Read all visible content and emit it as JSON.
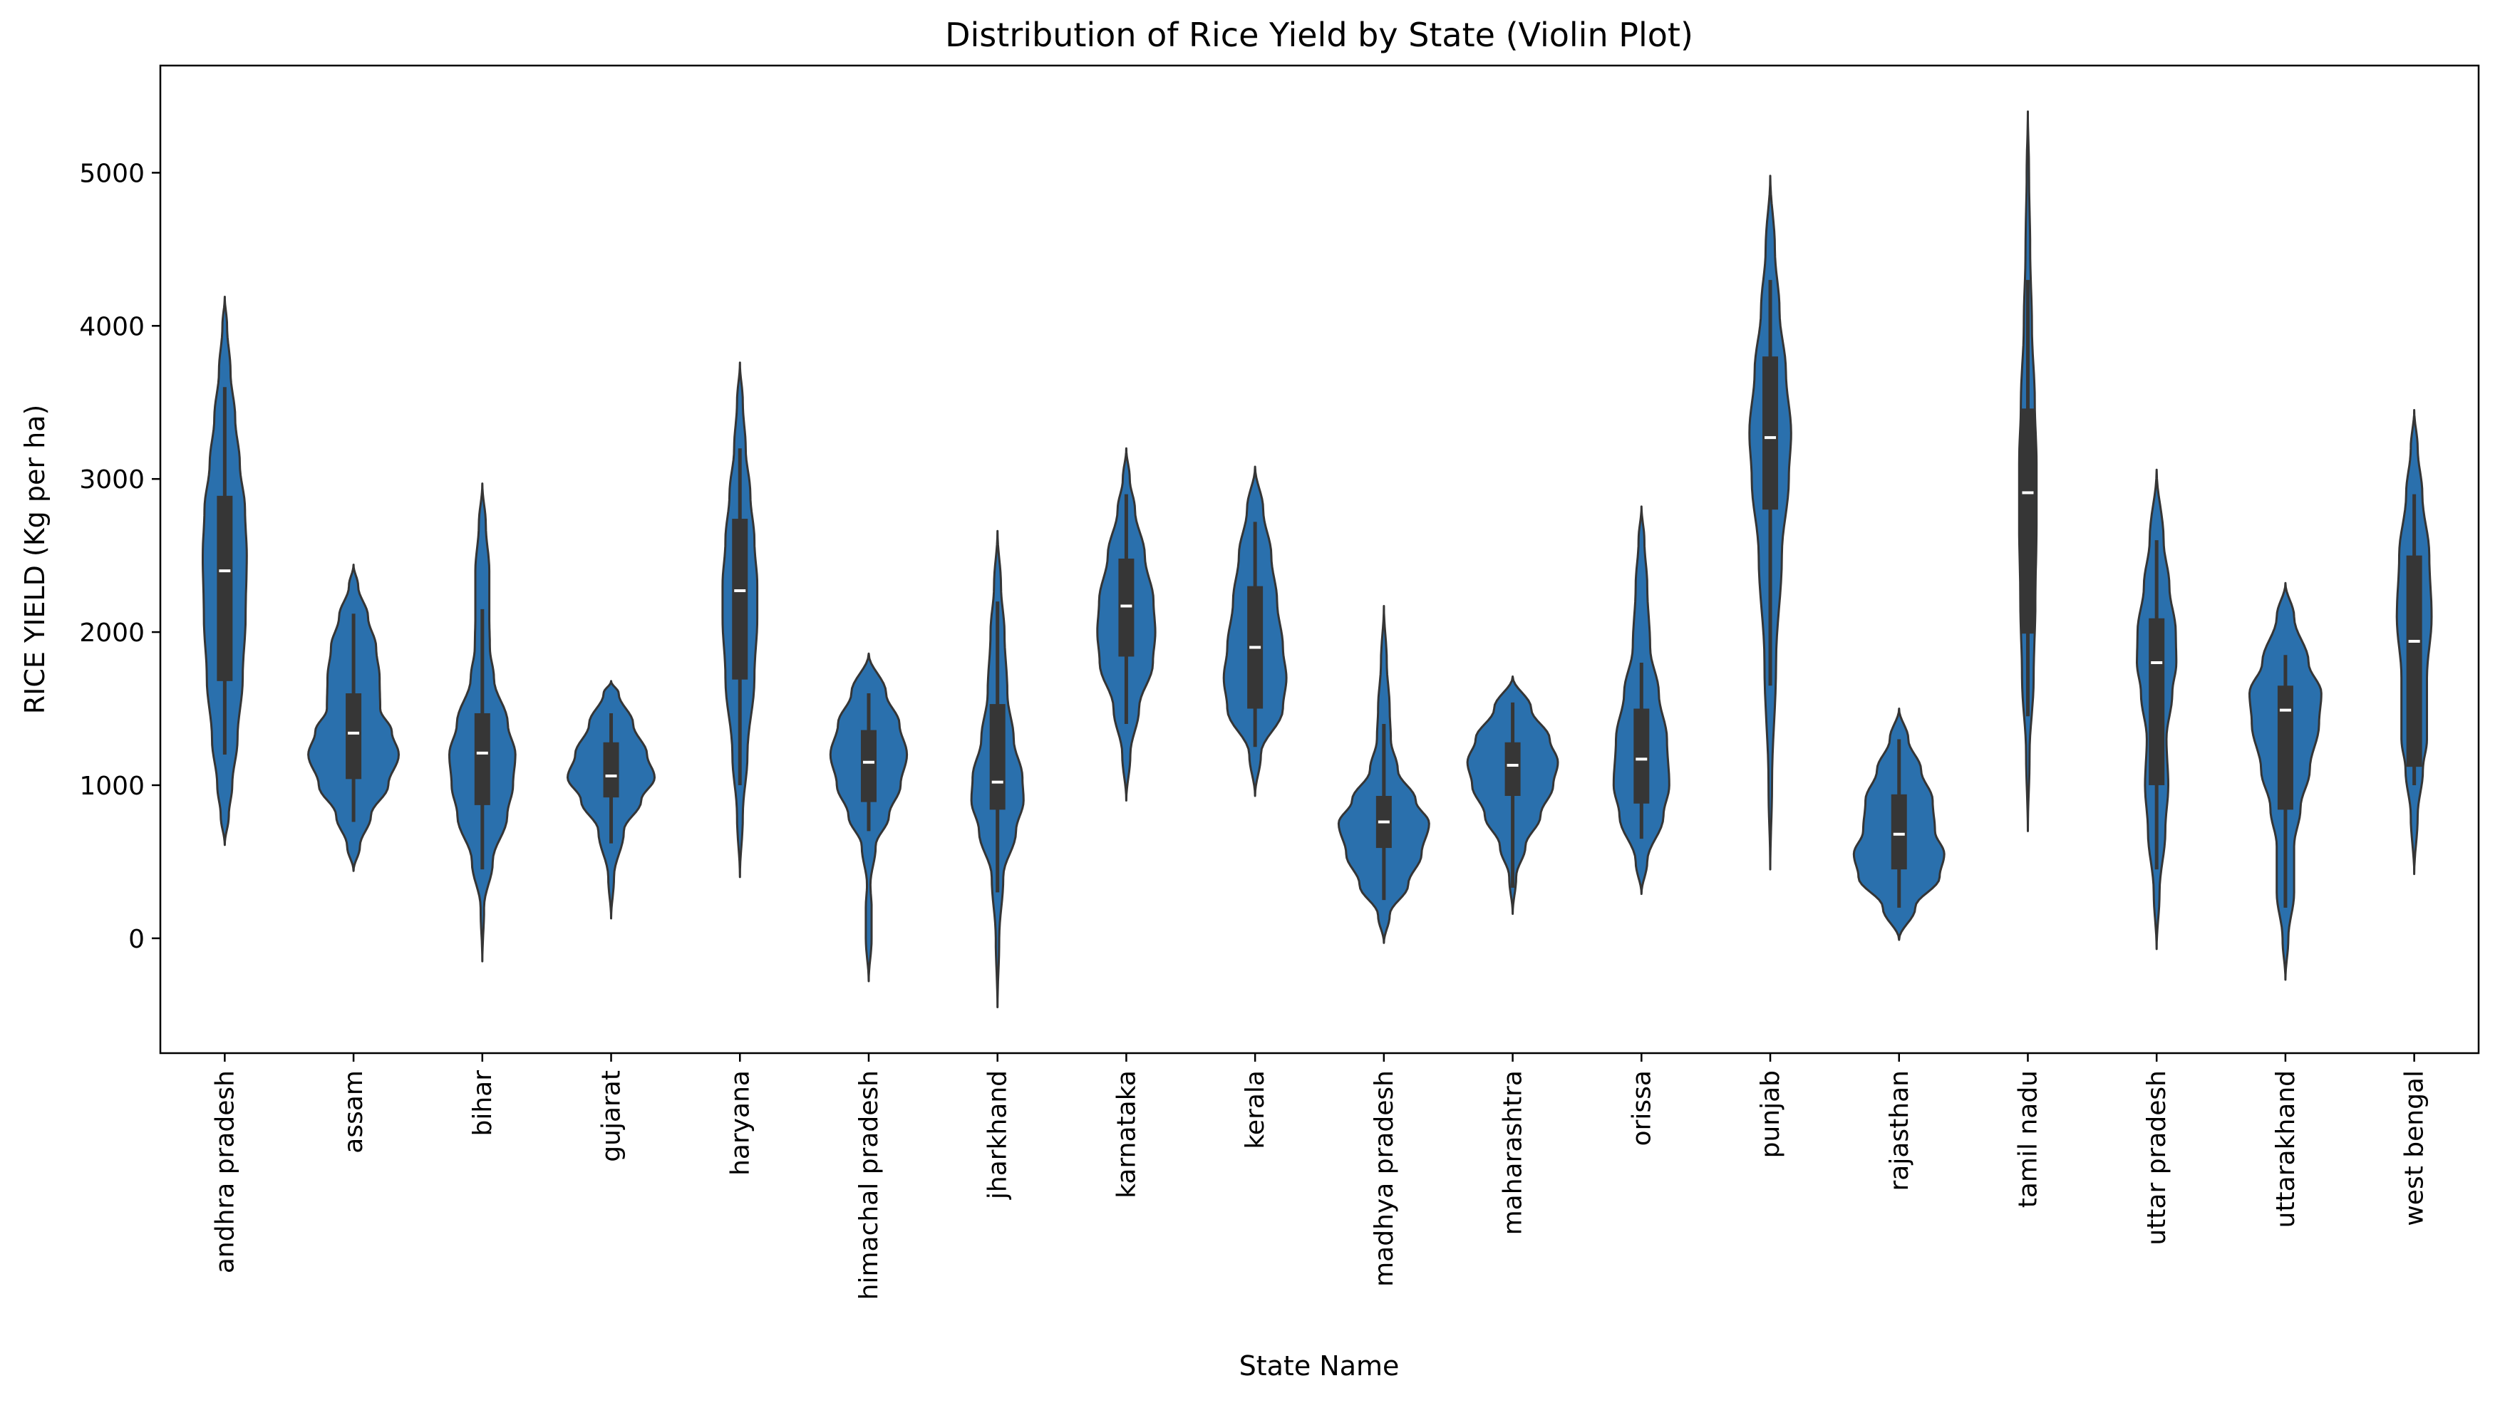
{
  "chart_data": {
    "type": "violin",
    "title": "Distribution of Rice Yield by State (Violin Plot)",
    "xlabel": "State Name",
    "ylabel": "RICE YIELD (Kg per ha)",
    "ylim": [
      -750,
      5700
    ],
    "yticks": [
      0,
      1000,
      2000,
      3000,
      4000,
      5000
    ],
    "grid": false,
    "color": "#2a70ad",
    "edge_color": "#353535",
    "box_color": "#363636",
    "median_color": "#ffffff",
    "categories": [
      "andhra pradesh",
      "assam",
      "bihar",
      "gujarat",
      "haryana",
      "himachal pradesh",
      "jharkhand",
      "karnataka",
      "kerala",
      "madhya pradesh",
      "maharashtra",
      "orissa",
      "punjab",
      "rajasthan",
      "tamil nadu",
      "uttar pradesh",
      "uttarakhand",
      "west bengal"
    ],
    "violins": [
      {
        "min": 610,
        "max": 4190,
        "q1": 1680,
        "median": 2400,
        "q3": 2890,
        "wlo": 1200,
        "whi": 3600,
        "profile": [
          [
            610,
            0.0
          ],
          [
            800,
            0.07
          ],
          [
            1000,
            0.13
          ],
          [
            1300,
            0.22
          ],
          [
            1700,
            0.31
          ],
          [
            2100,
            0.36
          ],
          [
            2500,
            0.38
          ],
          [
            2800,
            0.35
          ],
          [
            3100,
            0.26
          ],
          [
            3400,
            0.18
          ],
          [
            3700,
            0.1
          ],
          [
            4000,
            0.04
          ],
          [
            4190,
            0.0
          ]
        ]
      },
      {
        "min": 440,
        "max": 2440,
        "q1": 1040,
        "median": 1340,
        "q3": 1600,
        "wlo": 760,
        "whi": 2120,
        "profile": [
          [
            440,
            0.0
          ],
          [
            600,
            0.11
          ],
          [
            800,
            0.3
          ],
          [
            1000,
            0.6
          ],
          [
            1200,
            0.78
          ],
          [
            1350,
            0.66
          ],
          [
            1500,
            0.46
          ],
          [
            1700,
            0.45
          ],
          [
            1900,
            0.39
          ],
          [
            2100,
            0.25
          ],
          [
            2300,
            0.08
          ],
          [
            2440,
            0.0
          ]
        ]
      },
      {
        "min": -150,
        "max": 2970,
        "q1": 870,
        "median": 1210,
        "q3": 1470,
        "wlo": 450,
        "whi": 2150,
        "profile": [
          [
            -150,
            0.0
          ],
          [
            200,
            0.03
          ],
          [
            500,
            0.18
          ],
          [
            800,
            0.43
          ],
          [
            1000,
            0.53
          ],
          [
            1200,
            0.57
          ],
          [
            1400,
            0.44
          ],
          [
            1700,
            0.2
          ],
          [
            1900,
            0.13
          ],
          [
            2100,
            0.12
          ],
          [
            2400,
            0.12
          ],
          [
            2700,
            0.06
          ],
          [
            2970,
            0.0
          ]
        ]
      },
      {
        "min": 130,
        "max": 1680,
        "q1": 920,
        "median": 1060,
        "q3": 1280,
        "wlo": 620,
        "whi": 1470,
        "profile": [
          [
            130,
            0.0
          ],
          [
            400,
            0.05
          ],
          [
            700,
            0.22
          ],
          [
            900,
            0.52
          ],
          [
            1050,
            0.75
          ],
          [
            1200,
            0.62
          ],
          [
            1400,
            0.38
          ],
          [
            1600,
            0.13
          ],
          [
            1680,
            0.0
          ]
        ]
      },
      {
        "min": 400,
        "max": 3760,
        "q1": 1690,
        "median": 2270,
        "q3": 2740,
        "wlo": 1000,
        "whi": 3200,
        "profile": [
          [
            400,
            0.0
          ],
          [
            800,
            0.05
          ],
          [
            1200,
            0.13
          ],
          [
            1700,
            0.25
          ],
          [
            2100,
            0.3
          ],
          [
            2300,
            0.3
          ],
          [
            2600,
            0.25
          ],
          [
            2900,
            0.18
          ],
          [
            3200,
            0.1
          ],
          [
            3500,
            0.05
          ],
          [
            3760,
            0.0
          ]
        ]
      },
      {
        "min": -280,
        "max": 1860,
        "q1": 890,
        "median": 1150,
        "q3": 1360,
        "wlo": 700,
        "whi": 1600,
        "profile": [
          [
            -280,
            0.0
          ],
          [
            0,
            0.05
          ],
          [
            200,
            0.05
          ],
          [
            350,
            0.03
          ],
          [
            600,
            0.12
          ],
          [
            800,
            0.35
          ],
          [
            1000,
            0.55
          ],
          [
            1200,
            0.66
          ],
          [
            1400,
            0.53
          ],
          [
            1600,
            0.3
          ],
          [
            1860,
            0.0
          ]
        ]
      },
      {
        "min": -450,
        "max": 2660,
        "q1": 840,
        "median": 1020,
        "q3": 1530,
        "wlo": 300,
        "whi": 2200,
        "profile": [
          [
            -450,
            0.0
          ],
          [
            0,
            0.03
          ],
          [
            400,
            0.1
          ],
          [
            700,
            0.32
          ],
          [
            900,
            0.45
          ],
          [
            1050,
            0.43
          ],
          [
            1300,
            0.28
          ],
          [
            1600,
            0.17
          ],
          [
            2000,
            0.12
          ],
          [
            2300,
            0.06
          ],
          [
            2660,
            0.0
          ]
        ]
      },
      {
        "min": 900,
        "max": 3200,
        "q1": 1840,
        "median": 2170,
        "q3": 2480,
        "wlo": 1400,
        "whi": 2900,
        "profile": [
          [
            900,
            0.0
          ],
          [
            1200,
            0.07
          ],
          [
            1500,
            0.22
          ],
          [
            1800,
            0.46
          ],
          [
            2000,
            0.5
          ],
          [
            2200,
            0.47
          ],
          [
            2500,
            0.32
          ],
          [
            2800,
            0.15
          ],
          [
            3000,
            0.06
          ],
          [
            3200,
            0.0
          ]
        ]
      },
      {
        "min": 930,
        "max": 3080,
        "q1": 1500,
        "median": 1900,
        "q3": 2300,
        "wlo": 1250,
        "whi": 2720,
        "profile": [
          [
            930,
            0.0
          ],
          [
            1200,
            0.1
          ],
          [
            1500,
            0.48
          ],
          [
            1700,
            0.54
          ],
          [
            1900,
            0.48
          ],
          [
            2200,
            0.38
          ],
          [
            2500,
            0.28
          ],
          [
            2800,
            0.14
          ],
          [
            3080,
            0.0
          ]
        ]
      },
      {
        "min": -30,
        "max": 2170,
        "q1": 590,
        "median": 760,
        "q3": 930,
        "wlo": 250,
        "whi": 1400,
        "profile": [
          [
            -30,
            0.0
          ],
          [
            150,
            0.1
          ],
          [
            350,
            0.42
          ],
          [
            550,
            0.65
          ],
          [
            750,
            0.78
          ],
          [
            900,
            0.55
          ],
          [
            1100,
            0.24
          ],
          [
            1300,
            0.12
          ],
          [
            1500,
            0.1
          ],
          [
            1800,
            0.05
          ],
          [
            2170,
            0.0
          ]
        ]
      },
      {
        "min": 160,
        "max": 1710,
        "q1": 930,
        "median": 1130,
        "q3": 1280,
        "wlo": 330,
        "whi": 1540,
        "profile": [
          [
            160,
            0.0
          ],
          [
            400,
            0.06
          ],
          [
            600,
            0.22
          ],
          [
            800,
            0.48
          ],
          [
            1000,
            0.7
          ],
          [
            1150,
            0.78
          ],
          [
            1300,
            0.64
          ],
          [
            1500,
            0.32
          ],
          [
            1710,
            0.0
          ]
        ]
      },
      {
        "min": 290,
        "max": 2820,
        "q1": 880,
        "median": 1170,
        "q3": 1500,
        "wlo": 650,
        "whi": 1800,
        "profile": [
          [
            290,
            0.0
          ],
          [
            500,
            0.1
          ],
          [
            800,
            0.38
          ],
          [
            1000,
            0.48
          ],
          [
            1300,
            0.44
          ],
          [
            1600,
            0.3
          ],
          [
            1900,
            0.15
          ],
          [
            2300,
            0.1
          ],
          [
            2600,
            0.05
          ],
          [
            2820,
            0.0
          ]
        ]
      },
      {
        "min": 450,
        "max": 4980,
        "q1": 2800,
        "median": 3270,
        "q3": 3800,
        "wlo": 1650,
        "whi": 4300,
        "profile": [
          [
            450,
            0.0
          ],
          [
            1000,
            0.03
          ],
          [
            1800,
            0.1
          ],
          [
            2500,
            0.2
          ],
          [
            3000,
            0.32
          ],
          [
            3300,
            0.36
          ],
          [
            3700,
            0.27
          ],
          [
            4100,
            0.16
          ],
          [
            4500,
            0.08
          ],
          [
            4980,
            0.0
          ]
        ]
      },
      {
        "min": -10,
        "max": 1500,
        "q1": 450,
        "median": 680,
        "q3": 940,
        "wlo": 200,
        "whi": 1300,
        "profile": [
          [
            -10,
            0.0
          ],
          [
            200,
            0.28
          ],
          [
            400,
            0.7
          ],
          [
            550,
            0.78
          ],
          [
            700,
            0.62
          ],
          [
            900,
            0.58
          ],
          [
            1100,
            0.38
          ],
          [
            1300,
            0.16
          ],
          [
            1500,
            0.0
          ]
        ]
      },
      {
        "min": 700,
        "max": 5400,
        "q1": 1990,
        "median": 2910,
        "q3": 3460,
        "wlo": 1450,
        "whi": 4300,
        "profile": [
          [
            700,
            0.0
          ],
          [
            1200,
            0.03
          ],
          [
            1700,
            0.1
          ],
          [
            2200,
            0.13
          ],
          [
            2700,
            0.15
          ],
          [
            3100,
            0.15
          ],
          [
            3500,
            0.12
          ],
          [
            4000,
            0.07
          ],
          [
            4500,
            0.04
          ],
          [
            5000,
            0.02
          ],
          [
            5400,
            0.0
          ]
        ]
      },
      {
        "min": -70,
        "max": 3060,
        "q1": 1000,
        "median": 1800,
        "q3": 2090,
        "wlo": 450,
        "whi": 2600,
        "profile": [
          [
            -70,
            0.0
          ],
          [
            300,
            0.05
          ],
          [
            700,
            0.15
          ],
          [
            1000,
            0.2
          ],
          [
            1300,
            0.17
          ],
          [
            1600,
            0.27
          ],
          [
            1800,
            0.34
          ],
          [
            2000,
            0.33
          ],
          [
            2300,
            0.22
          ],
          [
            2600,
            0.12
          ],
          [
            3060,
            0.0
          ]
        ]
      },
      {
        "min": -270,
        "max": 2320,
        "q1": 840,
        "median": 1490,
        "q3": 1650,
        "wlo": 200,
        "whi": 1850,
        "profile": [
          [
            -270,
            0.0
          ],
          [
            0,
            0.05
          ],
          [
            300,
            0.15
          ],
          [
            600,
            0.15
          ],
          [
            850,
            0.26
          ],
          [
            1100,
            0.42
          ],
          [
            1400,
            0.58
          ],
          [
            1600,
            0.62
          ],
          [
            1800,
            0.4
          ],
          [
            2100,
            0.15
          ],
          [
            2320,
            0.0
          ]
        ]
      },
      {
        "min": 420,
        "max": 3450,
        "q1": 1120,
        "median": 1940,
        "q3": 2500,
        "wlo": 1000,
        "whi": 2900,
        "profile": [
          [
            420,
            0.0
          ],
          [
            800,
            0.06
          ],
          [
            1100,
            0.15
          ],
          [
            1300,
            0.22
          ],
          [
            1700,
            0.22
          ],
          [
            2100,
            0.3
          ],
          [
            2500,
            0.26
          ],
          [
            2900,
            0.14
          ],
          [
            3200,
            0.06
          ],
          [
            3450,
            0.0
          ]
        ]
      }
    ]
  }
}
